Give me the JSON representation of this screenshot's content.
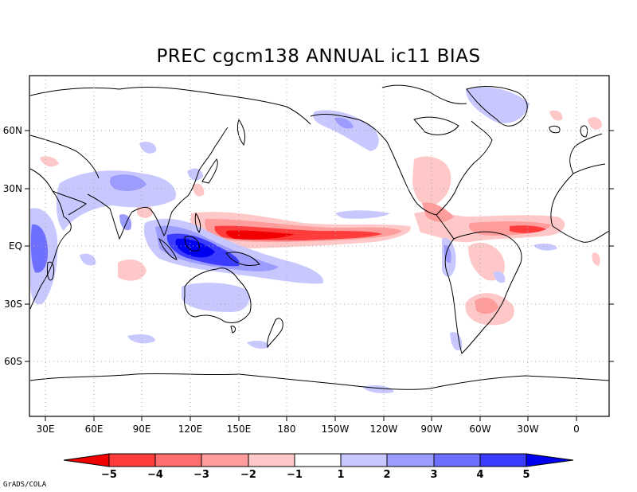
{
  "title": "PREC cgcm138 ANNUAL ic11 BIAS",
  "credit": "GrADS/COLA",
  "map": {
    "lat_labels": [
      "60N",
      "30N",
      "EQ",
      "30S",
      "60S"
    ],
    "lon_labels": [
      "30E",
      "60E",
      "90E",
      "120E",
      "150E",
      "180",
      "150W",
      "120W",
      "90W",
      "60W",
      "30W",
      "0"
    ]
  },
  "colorbar": {
    "labels": [
      "-5",
      "-4",
      "-3",
      "-2",
      "-1",
      "1",
      "2",
      "3",
      "4",
      "5"
    ],
    "colors": [
      "#f00000",
      "#ff3c3c",
      "#ff6e6e",
      "#ff9c9c",
      "#ffc8c8",
      "#ffffff",
      "#c8c8ff",
      "#9c9cff",
      "#6e6eff",
      "#3c3cff",
      "#0000f0"
    ]
  },
  "palette": {
    "red_light": "#ffc8c8",
    "red_mid": "#ff9c9c",
    "red_strong": "#ff3c3c",
    "red_max": "#f00000",
    "blue_light": "#c8c8ff",
    "blue_mid": "#9c9cff",
    "blue_strong": "#3c3cff",
    "blue_max": "#0000f0"
  }
}
